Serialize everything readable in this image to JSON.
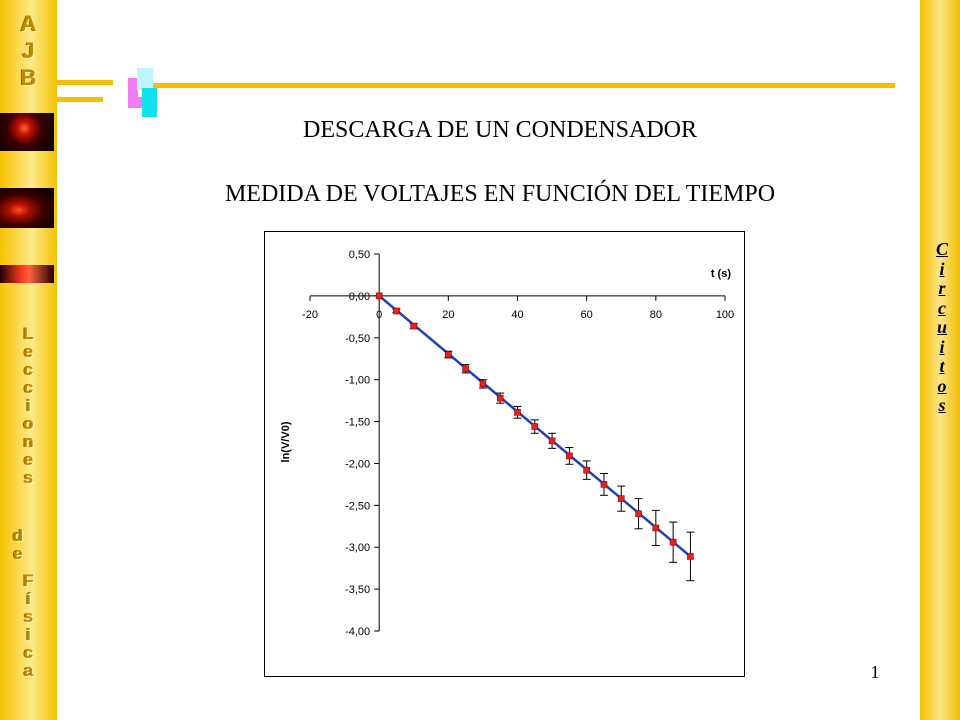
{
  "sidebar": {
    "logo": [
      "A",
      "J",
      "B"
    ],
    "lecciones": [
      "L",
      "e",
      "c",
      "c",
      "i",
      "o",
      "n",
      "e",
      "s"
    ],
    "de": [
      "d",
      "e"
    ],
    "fisica": [
      "F",
      "í",
      "s",
      "i",
      "c",
      "a"
    ]
  },
  "right_bar": {
    "circuitos": [
      "C",
      "i",
      "r",
      "c",
      "u",
      "i",
      "t",
      "o",
      "s"
    ]
  },
  "header": {
    "title": "DESCARGA DE UN CONDENSADOR",
    "subtitle": "MEDIDA DE VOLTAJES EN FUNCIÓN DEL TIEMPO"
  },
  "page_number": "1",
  "colors": {
    "accent": "#f2be00",
    "line": "#1f3fbf",
    "marker": "#e8201e"
  },
  "chart_data": {
    "type": "scatter",
    "xlabel": "t (s)",
    "ylabel": "ln(V/V0)",
    "xlim": [
      -20,
      100
    ],
    "ylim": [
      -4.0,
      0.5
    ],
    "x_ticks": [
      "-20",
      "0",
      "20",
      "40",
      "60",
      "80",
      "100"
    ],
    "y_ticks": [
      "0,50",
      "0,00",
      "-0,50",
      "-1,00",
      "-1,50",
      "-2,00",
      "-2,50",
      "-3,00",
      "-3,50",
      "-4,00"
    ],
    "grid": false,
    "series": [
      {
        "x": [
          0,
          5,
          10,
          20,
          25,
          30,
          35,
          40,
          45,
          50,
          55,
          60,
          65,
          70,
          75,
          80,
          85,
          90
        ],
        "y": [
          0.0,
          -0.18,
          -0.36,
          -0.7,
          -0.87,
          -1.05,
          -1.22,
          -1.39,
          -1.56,
          -1.73,
          -1.91,
          -2.08,
          -2.25,
          -2.42,
          -2.6,
          -2.77,
          -2.94,
          -3.11
        ],
        "error": [
          0.0,
          0.02,
          0.03,
          0.04,
          0.05,
          0.05,
          0.06,
          0.07,
          0.08,
          0.09,
          0.1,
          0.11,
          0.13,
          0.15,
          0.18,
          0.21,
          0.24,
          0.29
        ]
      }
    ],
    "fit_line": {
      "x": [
        0,
        90
      ],
      "y": [
        0.0,
        -3.11
      ]
    }
  }
}
